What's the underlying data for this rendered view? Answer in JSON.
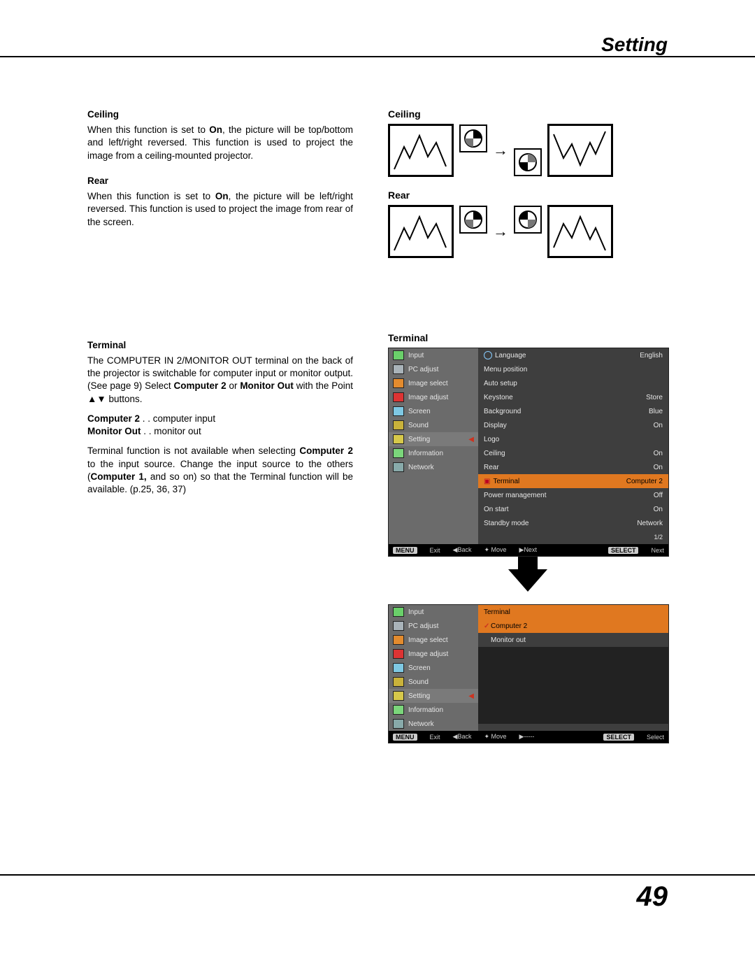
{
  "page": {
    "title": "Setting",
    "number": "49"
  },
  "left": {
    "ceiling_head": "Ceiling",
    "ceiling_body_a": "When this function is set to ",
    "ceiling_body_b": "On",
    "ceiling_body_c": ", the picture will be top/bottom and left/right reversed. This function is used to project the image from a ceiling-mounted projector.",
    "rear_head": "Rear",
    "rear_body_a": "When this function is set to ",
    "rear_body_b": "On",
    "rear_body_c": ", the picture will be left/right reversed. This function is used to project the image from rear of the screen.",
    "term_head": "Terminal",
    "term_p1_a": "The COMPUTER IN 2/MONITOR OUT terminal on the back of the projector is switchable for computer input or monitor output. (See page 9)  Select ",
    "term_p1_b": "Computer 2",
    "term_p1_c": " or ",
    "term_p1_d": "Monitor Out",
    "term_p1_e": " with the Point ▲▼ buttons.",
    "opt1_k": "Computer 2",
    "opt1_d": " . .  computer input",
    "opt2_k": "Monitor Out",
    "opt2_d": " . .  monitor out",
    "term_p2_a": "Terminal function is not available when selecting ",
    "term_p2_b": "Computer 2",
    "term_p2_c": " to the input source.  Change the input source to the others (",
    "term_p2_d": "Computer 1,",
    "term_p2_e": " and so on) so that the Terminal function will be available. (p.25, 36, 37)"
  },
  "right": {
    "ceiling_head": "Ceiling",
    "rear_head": "Rear",
    "terminal_head": "Terminal"
  },
  "menu1": {
    "side": [
      {
        "icon": "#6ad06a",
        "label": "Input"
      },
      {
        "icon": "#a9b3b9",
        "label": "PC adjust"
      },
      {
        "icon": "#e38b2e",
        "label": "Image select"
      },
      {
        "icon": "#d33",
        "label": "Image adjust"
      },
      {
        "icon": "#7ec8e3",
        "label": "Screen"
      },
      {
        "icon": "#c9b23a",
        "label": "Sound"
      },
      {
        "icon": "#d6c84a",
        "label": "Setting",
        "sel": true
      },
      {
        "icon": "#7bd67b",
        "label": "Information"
      },
      {
        "icon": "#8aa",
        "label": "Network"
      }
    ],
    "opts": [
      {
        "label": "Language",
        "val": "English",
        "globe": true
      },
      {
        "label": "Menu position",
        "val": ""
      },
      {
        "label": "Auto setup",
        "val": ""
      },
      {
        "label": "Keystone",
        "val": "Store"
      },
      {
        "label": "Background",
        "val": "Blue"
      },
      {
        "label": "Display",
        "val": "On"
      },
      {
        "label": "Logo",
        "val": ""
      },
      {
        "label": "Ceiling",
        "val": "On"
      },
      {
        "label": "Rear",
        "val": "On"
      },
      {
        "label": "Terminal",
        "val": "Computer 2",
        "hl": true,
        "icon": true
      },
      {
        "label": "Power management",
        "val": "Off"
      },
      {
        "label": "On start",
        "val": "On"
      },
      {
        "label": "Standby mode",
        "val": "Network"
      }
    ],
    "page_ind": "1/2",
    "bar": {
      "exit": "Exit",
      "back": "Back",
      "move": "Move",
      "next": "Next",
      "sel": "Next",
      "menu": "MENU",
      "select": "SELECT"
    }
  },
  "menu2": {
    "head": "Terminal",
    "opts": [
      {
        "label": "Computer 2",
        "ck": true,
        "hl": true
      },
      {
        "label": "Monitor out"
      }
    ],
    "bar": {
      "exit": "Exit",
      "back": "Back",
      "move": "Move",
      "next": "-----",
      "sel": "Select",
      "menu": "MENU",
      "select": "SELECT"
    }
  }
}
